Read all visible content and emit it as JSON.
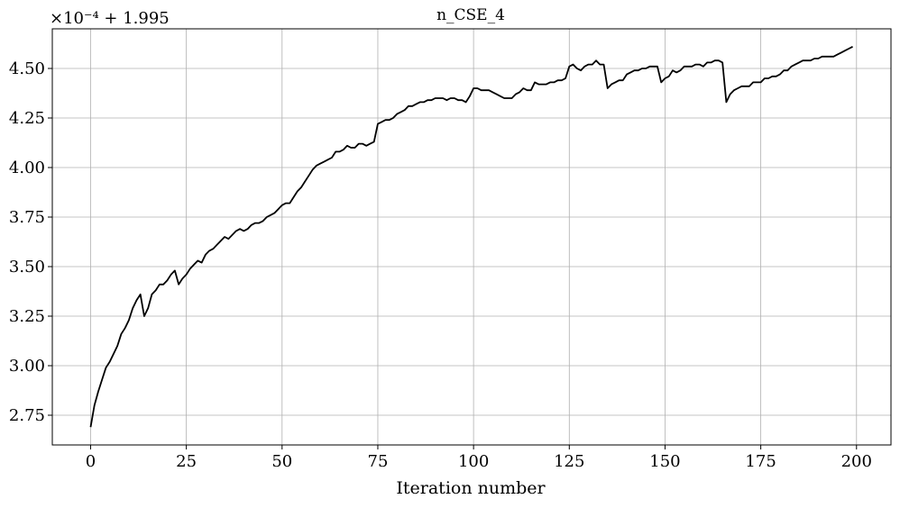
{
  "chart_data": {
    "type": "line",
    "title": "n_CSE_4",
    "xlabel": "Iteration number",
    "ylabel": "",
    "offset_label": "×10⁻⁴ + 1.995",
    "xlim": [
      -10,
      209
    ],
    "ylim": [
      2.6,
      4.7
    ],
    "x_ticks": [
      0,
      25,
      50,
      75,
      100,
      125,
      150,
      175,
      200
    ],
    "y_ticks": [
      2.75,
      3.0,
      3.25,
      3.5,
      3.75,
      4.0,
      4.25,
      4.5
    ],
    "x_tick_labels": [
      "0",
      "25",
      "50",
      "75",
      "100",
      "125",
      "150",
      "175",
      "200"
    ],
    "y_tick_labels": [
      "2.75",
      "3.00",
      "3.25",
      "3.50",
      "3.75",
      "4.00",
      "4.25",
      "4.50"
    ],
    "grid": true,
    "line_color": "#000000",
    "series": [
      {
        "name": "",
        "values": [
          2.69,
          2.8,
          2.87,
          2.93,
          2.99,
          3.02,
          3.06,
          3.1,
          3.16,
          3.19,
          3.23,
          3.29,
          3.33,
          3.36,
          3.25,
          3.29,
          3.36,
          3.38,
          3.41,
          3.41,
          3.43,
          3.46,
          3.48,
          3.41,
          3.44,
          3.46,
          3.49,
          3.51,
          3.53,
          3.52,
          3.56,
          3.58,
          3.59,
          3.61,
          3.63,
          3.65,
          3.64,
          3.66,
          3.68,
          3.69,
          3.68,
          3.69,
          3.71,
          3.72,
          3.72,
          3.73,
          3.75,
          3.76,
          3.77,
          3.79,
          3.81,
          3.82,
          3.82,
          3.85,
          3.88,
          3.9,
          3.93,
          3.96,
          3.99,
          4.01,
          4.02,
          4.03,
          4.04,
          4.05,
          4.08,
          4.08,
          4.09,
          4.11,
          4.1,
          4.1,
          4.12,
          4.12,
          4.11,
          4.12,
          4.13,
          4.22,
          4.23,
          4.24,
          4.24,
          4.25,
          4.27,
          4.28,
          4.29,
          4.31,
          4.31,
          4.32,
          4.33,
          4.33,
          4.34,
          4.34,
          4.35,
          4.35,
          4.35,
          4.34,
          4.35,
          4.35,
          4.34,
          4.34,
          4.33,
          4.36,
          4.4,
          4.4,
          4.39,
          4.39,
          4.39,
          4.38,
          4.37,
          4.36,
          4.35,
          4.35,
          4.35,
          4.37,
          4.38,
          4.4,
          4.39,
          4.39,
          4.43,
          4.42,
          4.42,
          4.42,
          4.43,
          4.43,
          4.44,
          4.44,
          4.45,
          4.51,
          4.52,
          4.5,
          4.49,
          4.51,
          4.52,
          4.52,
          4.54,
          4.52,
          4.52,
          4.4,
          4.42,
          4.43,
          4.44,
          4.44,
          4.47,
          4.48,
          4.49,
          4.49,
          4.5,
          4.5,
          4.51,
          4.51,
          4.51,
          4.43,
          4.45,
          4.46,
          4.49,
          4.48,
          4.49,
          4.51,
          4.51,
          4.51,
          4.52,
          4.52,
          4.51,
          4.53,
          4.53,
          4.54,
          4.54,
          4.53,
          4.33,
          4.37,
          4.39,
          4.4,
          4.41,
          4.41,
          4.41,
          4.43,
          4.43,
          4.43,
          4.45,
          4.45,
          4.46,
          4.46,
          4.47,
          4.49,
          4.49,
          4.51,
          4.52,
          4.53,
          4.54,
          4.54,
          4.54,
          4.55,
          4.55,
          4.56,
          4.56,
          4.56,
          4.56,
          4.57,
          4.58,
          4.59,
          4.6,
          4.61
        ]
      }
    ]
  }
}
